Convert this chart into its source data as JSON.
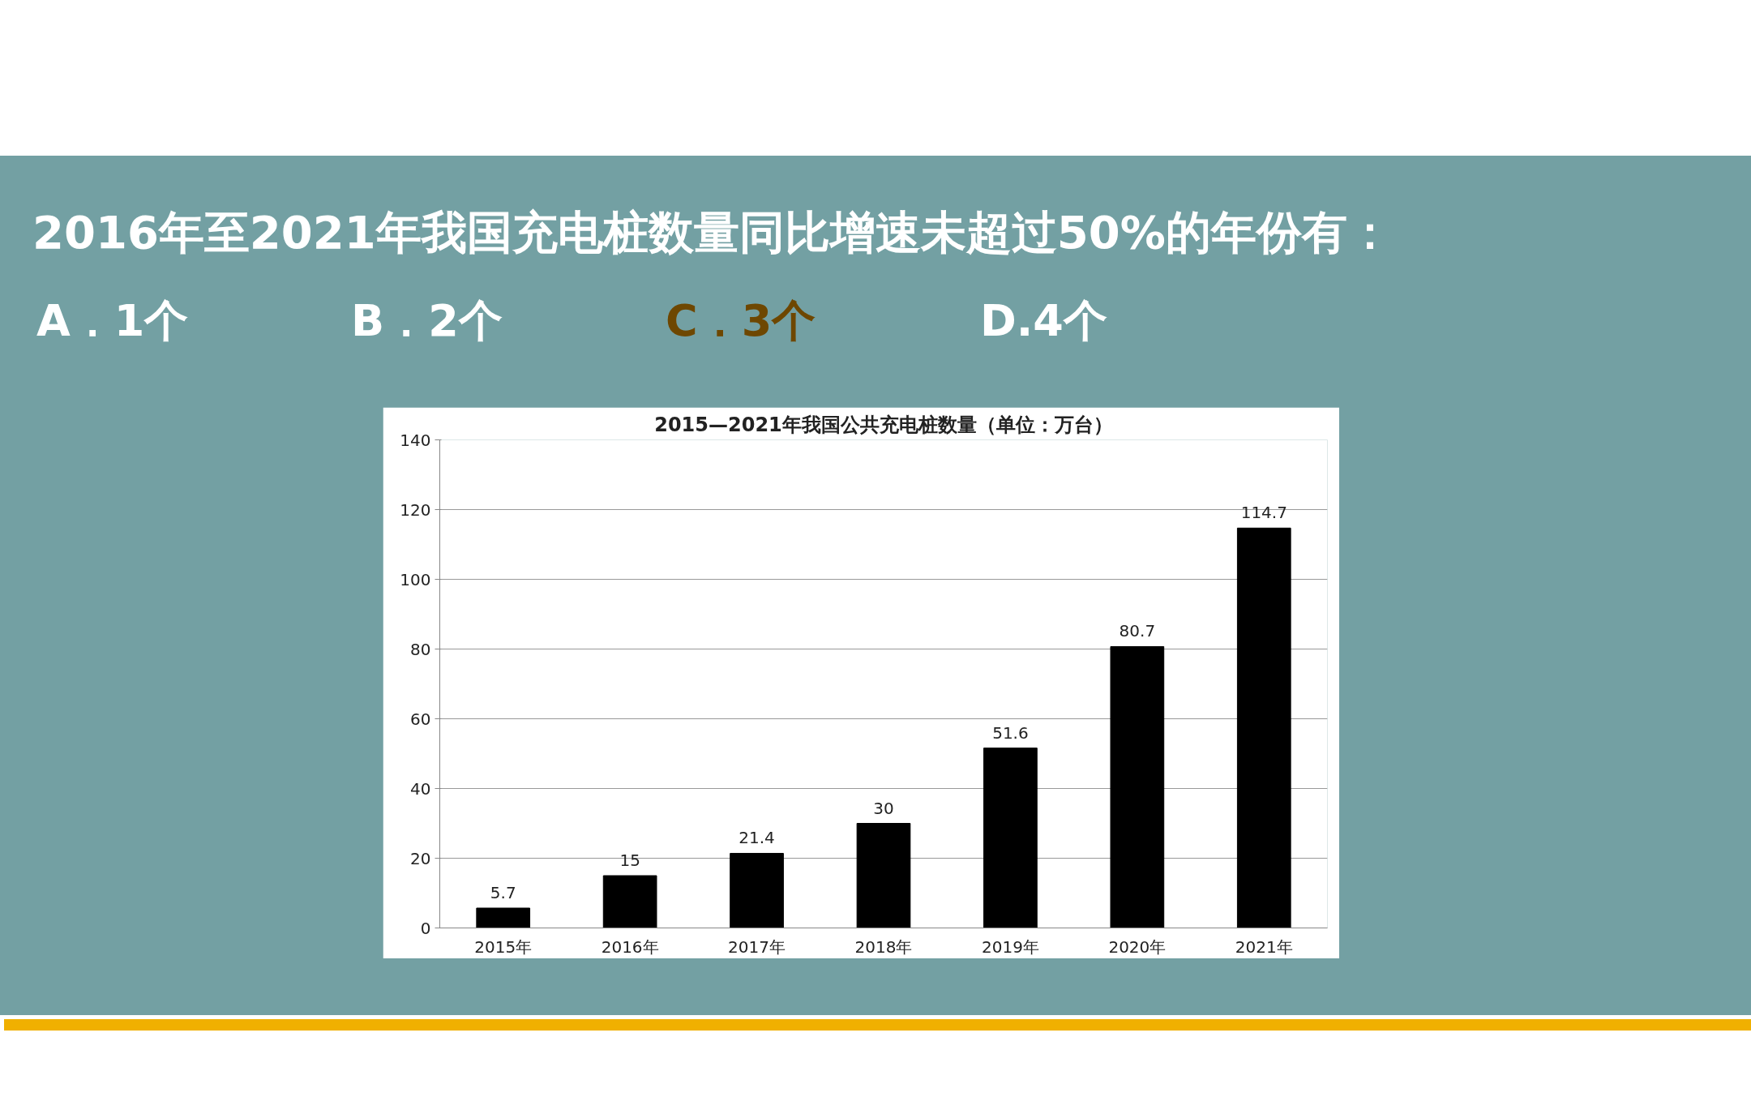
{
  "chart_data": {
    "type": "bar",
    "title": "2015—2021年我国公共充电桩数量（单位：万台）",
    "annotations": [
      "2016年至2021年我国充电桩数量同比增速未超过50%的年份有：",
      "A．1个",
      "B．2个",
      "C．3个",
      "D.4个"
    ],
    "categories": [
      "2015年",
      "2016年",
      "2017年",
      "2018年",
      "2019年",
      "2020年",
      "2021年"
    ],
    "values": [
      5.7,
      15,
      21.4,
      30,
      51.6,
      80.7,
      114.7
    ],
    "color": "#000000",
    "ylim": [
      0,
      140
    ],
    "yticks": [
      0,
      20,
      40,
      60,
      80,
      100,
      120,
      140
    ],
    "grid": "y",
    "data_labels": true
  }
}
